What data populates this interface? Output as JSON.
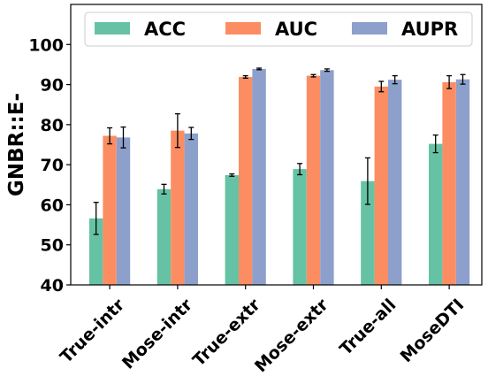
{
  "chart_data": {
    "type": "bar",
    "title": "",
    "xlabel": "",
    "ylabel": "GNBR::E-",
    "ylim": [
      40,
      110
    ],
    "yticks": [
      40,
      50,
      60,
      70,
      80,
      90,
      100
    ],
    "categories": [
      "True-intr",
      "Mose-intr",
      "True-extr",
      "Mose-extr",
      "True-all",
      "MoseDTI"
    ],
    "series": [
      {
        "name": "ACC",
        "color": "#66c2a5",
        "values": [
          56.6,
          63.9,
          67.4,
          68.9,
          65.9,
          75.2
        ],
        "errors": [
          4.0,
          1.2,
          0.3,
          1.4,
          5.8,
          2.2
        ]
      },
      {
        "name": "AUC",
        "color": "#fc8d62",
        "values": [
          77.2,
          78.5,
          91.9,
          92.2,
          89.5,
          90.6
        ],
        "errors": [
          2.0,
          4.2,
          0.3,
          0.3,
          1.3,
          1.6
        ]
      },
      {
        "name": "AUPR",
        "color": "#8da0cb",
        "values": [
          76.8,
          77.8,
          93.9,
          93.6,
          91.2,
          91.3
        ],
        "errors": [
          2.6,
          1.5,
          0.2,
          0.3,
          1.0,
          1.2
        ]
      }
    ],
    "legend": "top, inside",
    "grid": false
  }
}
